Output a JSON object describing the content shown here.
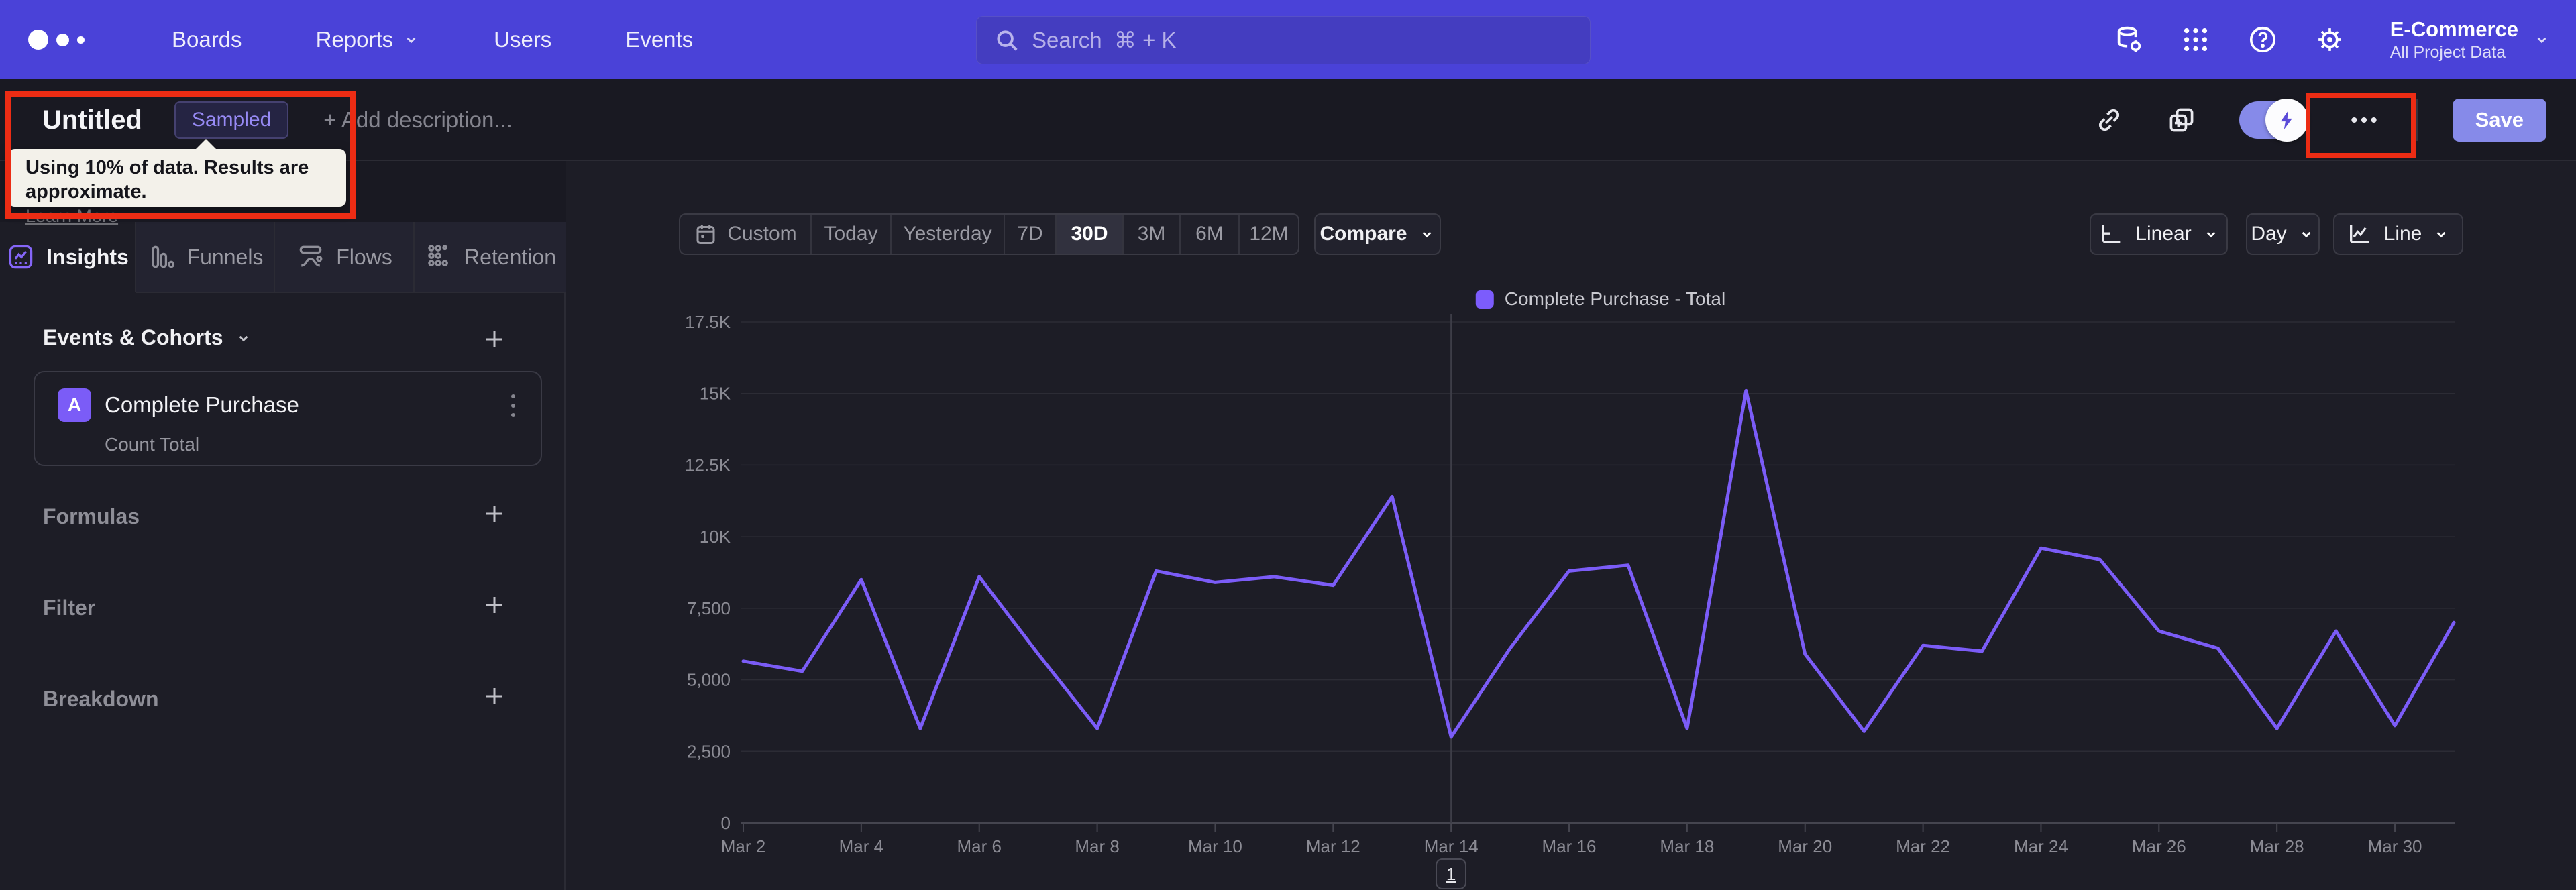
{
  "nav": {
    "items": [
      "Boards",
      "Reports",
      "Users",
      "Events"
    ],
    "search_placeholder": "Search  ⌘ + K",
    "project": {
      "name": "E-Commerce",
      "scope": "All Project Data"
    }
  },
  "titlebar": {
    "title": "Untitled",
    "badge": "Sampled",
    "add_description": "+ Add description...",
    "save_label": "Save"
  },
  "sampling_tooltip": {
    "text": "Using 10% of data. Results are approximate.",
    "link": "Learn More"
  },
  "sidebar": {
    "tabs": [
      {
        "label": "Insights",
        "active": true
      },
      {
        "label": "Funnels",
        "active": false
      },
      {
        "label": "Flows",
        "active": false
      },
      {
        "label": "Retention",
        "active": false
      }
    ],
    "events_header": "Events & Cohorts",
    "event_card": {
      "letter": "A",
      "title": "Complete Purchase",
      "subtitle": "Count Total"
    },
    "sections": [
      "Formulas",
      "Filter",
      "Breakdown"
    ]
  },
  "controls": {
    "ranges": [
      "Custom",
      "Today",
      "Yesterday",
      "7D",
      "30D",
      "3M",
      "6M",
      "12M"
    ],
    "selected_range": "30D",
    "compare": "Compare",
    "scale": "Linear",
    "granularity": "Day",
    "chart_type": "Line"
  },
  "chart_data": {
    "type": "line",
    "legend": "Complete Purchase - Total",
    "series_name": "Complete Purchase - Total",
    "x": [
      "Mar 2",
      "Mar 3",
      "Mar 4",
      "Mar 5",
      "Mar 6",
      "Mar 7",
      "Mar 8",
      "Mar 9",
      "Mar 10",
      "Mar 11",
      "Mar 12",
      "Mar 13",
      "Mar 14",
      "Mar 15",
      "Mar 16",
      "Mar 17",
      "Mar 18",
      "Mar 19",
      "Mar 20",
      "Mar 21",
      "Mar 22",
      "Mar 23",
      "Mar 24",
      "Mar 25",
      "Mar 26",
      "Mar 27",
      "Mar 28",
      "Mar 29",
      "Mar 30",
      "Mar 31"
    ],
    "values": [
      5650,
      5300,
      8500,
      3300,
      8600,
      5900,
      3300,
      8800,
      8400,
      8600,
      8300,
      11400,
      3000,
      6100,
      8800,
      9000,
      3300,
      15100,
      5900,
      3200,
      6200,
      6000,
      9600,
      9200,
      6700,
      6100,
      3300,
      6700,
      3400,
      7000
    ],
    "x_tick_labels": [
      "Mar 2",
      "Mar 4",
      "Mar 6",
      "Mar 8",
      "Mar 10",
      "Mar 12",
      "Mar 14",
      "Mar 16",
      "Mar 18",
      "Mar 20",
      "Mar 22",
      "Mar 24",
      "Mar 26",
      "Mar 28",
      "Mar 30"
    ],
    "y_ticks": {
      "labels": [
        "17.5K",
        "15K",
        "12.5K",
        "10K",
        "7,500",
        "5,000",
        "2,500",
        "0"
      ],
      "values": [
        17500,
        15000,
        12500,
        10000,
        7500,
        5000,
        2500,
        0
      ]
    },
    "ylim": [
      0,
      17500
    ],
    "grid": "horizontal",
    "legend_position": "top-center",
    "series_color": "#7b5cf7",
    "annotation": {
      "x": "Mar 14",
      "label": "1"
    }
  },
  "colors": {
    "nav": "#4a42d8",
    "accent_purple": "#7b5cf7",
    "periwinkle": "#868ae9",
    "annotation_red": "#ec2c14",
    "background": "#1d1d26"
  }
}
